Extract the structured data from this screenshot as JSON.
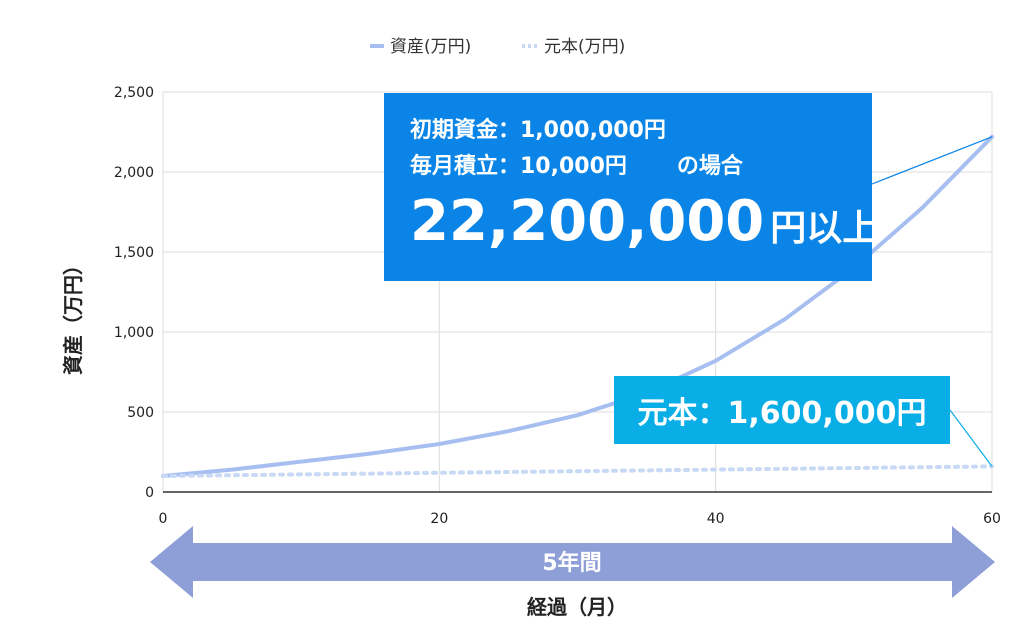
{
  "chart_data": {
    "type": "line",
    "legend": {
      "position": "top",
      "entries": [
        "資産(万円)",
        "元本(万円)"
      ]
    },
    "ylabel": "資産（万円）",
    "xlabel": "経過（月）",
    "xlim": [
      0,
      60
    ],
    "ylim": [
      0,
      2500
    ],
    "x_ticks": [
      "0",
      "20",
      "40",
      "60"
    ],
    "y_ticks": [
      "0",
      "500",
      "1,000",
      "1,500",
      "2,000",
      "2,500"
    ],
    "grid": true,
    "series": [
      {
        "name": "資産(万円)",
        "style": "solid",
        "color": "#a7bff0",
        "x": [
          0,
          5,
          10,
          15,
          20,
          25,
          30,
          35,
          40,
          45,
          50,
          55,
          60
        ],
        "y": [
          100,
          140,
          190,
          240,
          300,
          380,
          480,
          620,
          820,
          1080,
          1400,
          1780,
          2220
        ]
      },
      {
        "name": "元本(万円)",
        "style": "dotted",
        "color": "#c8d9f5",
        "x": [
          0,
          10,
          20,
          30,
          40,
          50,
          60
        ],
        "y": [
          100,
          110,
          120,
          130,
          140,
          150,
          160
        ]
      }
    ]
  },
  "callout_main": {
    "line1": "初期資金：1,000,000円",
    "line2": "毎月積立：10,000円",
    "line2_suffix": "の場合",
    "big_value": "22,200,000",
    "big_unit": "円以上",
    "color": "#0a84e6"
  },
  "callout_sub": {
    "text": "元本：1,600,000円",
    "color": "#0aaee6"
  },
  "period_arrow": {
    "label": "5年間",
    "color": "#8e9fd8"
  }
}
